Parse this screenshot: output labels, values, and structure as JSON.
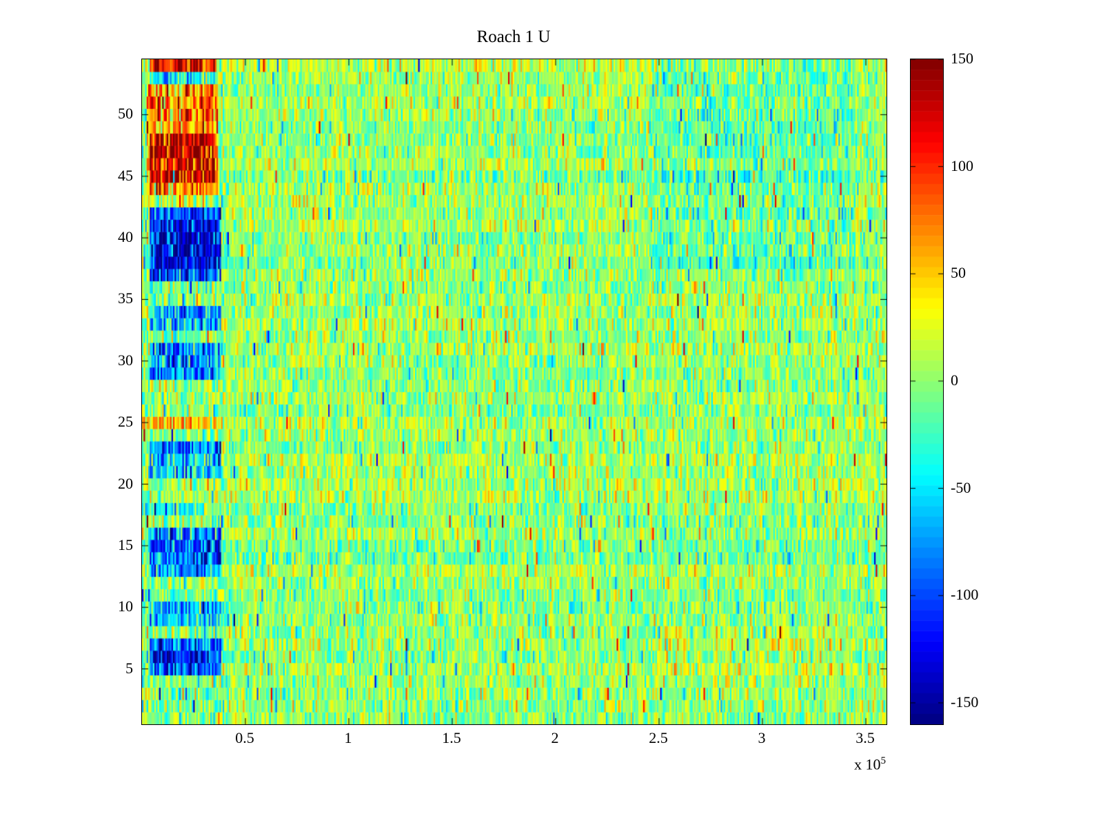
{
  "chart_data": {
    "type": "heatmap",
    "title": "Roach 1 U",
    "x_unit_label": "x 10",
    "x_unit_exp": "5",
    "x_ticks": [
      0.5,
      1,
      1.5,
      2,
      2.5,
      3,
      3.5
    ],
    "x_range": [
      0,
      3.6
    ],
    "y_ticks": [
      5,
      10,
      15,
      20,
      25,
      30,
      35,
      40,
      45,
      50
    ],
    "y_range": [
      0.5,
      54.5
    ],
    "rows": 54,
    "cols": 480,
    "clim": [
      -160,
      150
    ],
    "colorbar_ticks": [
      150,
      100,
      50,
      0,
      -50,
      -100,
      -150
    ],
    "colormap": "jet",
    "noise": {
      "mean": 3,
      "std": 24,
      "row_bias_std": 6,
      "spike_prob": 0.015,
      "spike_min": 50,
      "spike_max": 120,
      "seed": 1337
    },
    "features": [
      {
        "name": "top-left-red-stripe",
        "y": [
          53.6,
          54.5
        ],
        "x": [
          0.04,
          0.36
        ],
        "dv": 105,
        "jitter": 25
      },
      {
        "name": "top-left-cyan-row",
        "y": [
          52.6,
          53.5
        ],
        "x": [
          0.04,
          0.36
        ],
        "dv": -45,
        "jitter": 20
      },
      {
        "name": "left-warm-block",
        "y": [
          43.5,
          52.5
        ],
        "x": [
          0.02,
          0.37
        ],
        "dv": 70,
        "jitter": 25
      },
      {
        "name": "left-warm-core-dark-red",
        "y": [
          44.5,
          48.5
        ],
        "x": [
          0.04,
          0.35
        ],
        "dv": 65,
        "jitter": 20
      },
      {
        "name": "left-blue-block-37-42",
        "y": [
          36.5,
          42.5
        ],
        "x": [
          0.04,
          0.38
        ],
        "dv": -95,
        "jitter": 25
      },
      {
        "name": "left-blue-core-38-41",
        "y": [
          37.5,
          41.5
        ],
        "x": [
          0.06,
          0.36
        ],
        "dv": -35,
        "jitter": 15
      },
      {
        "name": "left-blue-band-33-34",
        "y": [
          32.5,
          34.5
        ],
        "x": [
          0.04,
          0.38
        ],
        "dv": -70,
        "jitter": 20
      },
      {
        "name": "left-blue-band-29-31",
        "y": [
          29.0,
          31.5
        ],
        "x": [
          0.04,
          0.38
        ],
        "dv": -75,
        "jitter": 20
      },
      {
        "name": "left-orange-line-25",
        "y": [
          24.8,
          25.7
        ],
        "x": [
          0.0,
          0.38
        ],
        "dv": 48,
        "jitter": 15
      },
      {
        "name": "left-blue-band-21-23",
        "y": [
          20.8,
          23.4
        ],
        "x": [
          0.04,
          0.38
        ],
        "dv": -65,
        "jitter": 20
      },
      {
        "name": "left-faint-blue-18",
        "y": [
          17.6,
          18.6
        ],
        "x": [
          0.04,
          0.3
        ],
        "dv": -35,
        "jitter": 15
      },
      {
        "name": "left-blue-band-13-16",
        "y": [
          12.9,
          16.1
        ],
        "x": [
          0.04,
          0.38
        ],
        "dv": -80,
        "jitter": 20
      },
      {
        "name": "left-blue-band-9-10",
        "y": [
          8.8,
          10.6
        ],
        "x": [
          0.04,
          0.38
        ],
        "dv": -60,
        "jitter": 20
      },
      {
        "name": "left-blue-band-5-7",
        "y": [
          4.6,
          7.6
        ],
        "x": [
          0.04,
          0.38
        ],
        "dv": -85,
        "jitter": 20
      },
      {
        "name": "left-blue-core-6",
        "y": [
          5.4,
          6.6
        ],
        "x": [
          0.05,
          0.36
        ],
        "dv": -30,
        "jitter": 10
      },
      {
        "name": "upper-right-cool-tint",
        "y": [
          38.0,
          54.5
        ],
        "x": [
          2.45,
          3.45
        ],
        "dv": -16,
        "jitter": 8
      },
      {
        "name": "lower-right-warm-tint",
        "y": [
          4.5,
          8.2
        ],
        "x": [
          2.75,
          3.45
        ],
        "dv": 14,
        "jitter": 8
      },
      {
        "name": "lower-right-orange-patch",
        "y": [
          4.5,
          8.0
        ],
        "x": [
          2.5,
          2.63
        ],
        "dv": 28,
        "jitter": 10
      },
      {
        "name": "left-band-extra-noise",
        "y": [
          0.5,
          54.5
        ],
        "x": [
          0.0,
          0.4
        ],
        "dv": -4,
        "jitter": 16
      }
    ]
  }
}
